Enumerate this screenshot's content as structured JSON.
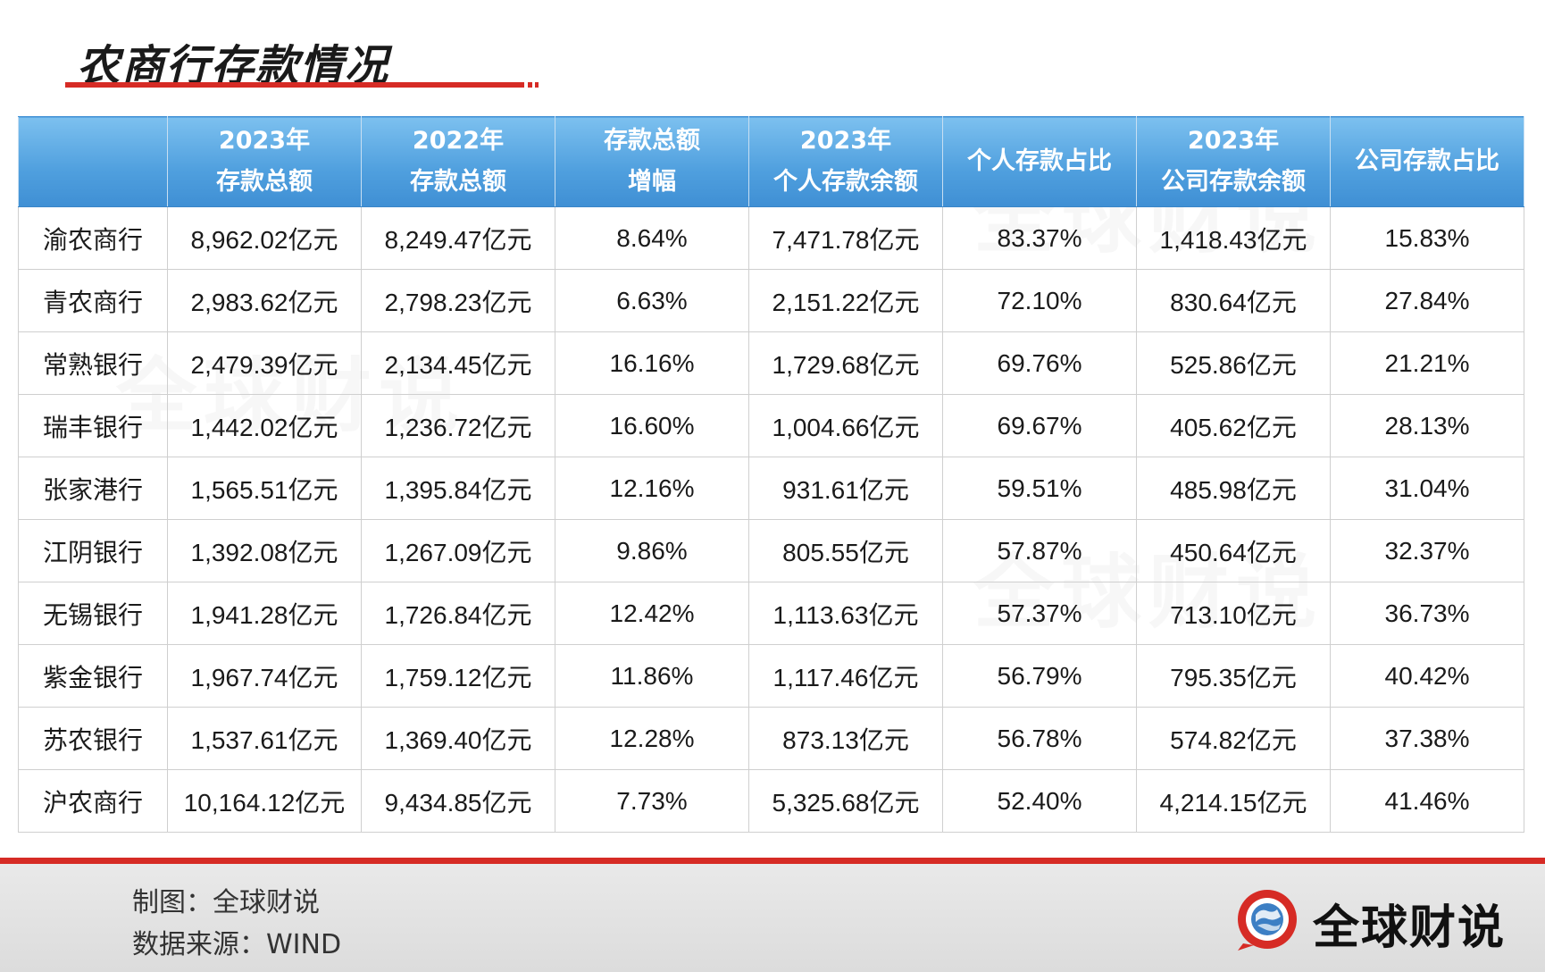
{
  "title": "农商行存款情况",
  "chart_data": {
    "type": "table",
    "columns": [
      {
        "id": "bank",
        "lines": [
          ""
        ]
      },
      {
        "id": "deposit_2023",
        "lines": [
          "2023年",
          "存款总额"
        ]
      },
      {
        "id": "deposit_2022",
        "lines": [
          "2022年",
          "存款总额"
        ]
      },
      {
        "id": "growth",
        "lines": [
          "存款总额",
          "增幅"
        ]
      },
      {
        "id": "personal_2023",
        "lines": [
          "2023年",
          "个人存款余额"
        ]
      },
      {
        "id": "personal_ratio",
        "lines": [
          "个人存款占比"
        ]
      },
      {
        "id": "corporate_2023",
        "lines": [
          "2023年",
          "公司存款余额"
        ]
      },
      {
        "id": "corporate_ratio",
        "lines": [
          "公司存款占比"
        ]
      }
    ],
    "rows": [
      [
        "渝农商行",
        "8,962.02亿元",
        "8,249.47亿元",
        "8.64%",
        "7,471.78亿元",
        "83.37%",
        "1,418.43亿元",
        "15.83%"
      ],
      [
        "青农商行",
        "2,983.62亿元",
        "2,798.23亿元",
        "6.63%",
        "2,151.22亿元",
        "72.10%",
        "830.64亿元",
        "27.84%"
      ],
      [
        "常熟银行",
        "2,479.39亿元",
        "2,134.45亿元",
        "16.16%",
        "1,729.68亿元",
        "69.76%",
        "525.86亿元",
        "21.21%"
      ],
      [
        "瑞丰银行",
        "1,442.02亿元",
        "1,236.72亿元",
        "16.60%",
        "1,004.66亿元",
        "69.67%",
        "405.62亿元",
        "28.13%"
      ],
      [
        "张家港行",
        "1,565.51亿元",
        "1,395.84亿元",
        "12.16%",
        "931.61亿元",
        "59.51%",
        "485.98亿元",
        "31.04%"
      ],
      [
        "江阴银行",
        "1,392.08亿元",
        "1,267.09亿元",
        "9.86%",
        "805.55亿元",
        "57.87%",
        "450.64亿元",
        "32.37%"
      ],
      [
        "无锡银行",
        "1,941.28亿元",
        "1,726.84亿元",
        "12.42%",
        "1,113.63亿元",
        "57.37%",
        "713.10亿元",
        "36.73%"
      ],
      [
        "紫金银行",
        "1,967.74亿元",
        "1,759.12亿元",
        "11.86%",
        "1,117.46亿元",
        "56.79%",
        "795.35亿元",
        "40.42%"
      ],
      [
        "苏农银行",
        "1,537.61亿元",
        "1,369.40亿元",
        "12.28%",
        "873.13亿元",
        "56.78%",
        "574.82亿元",
        "37.38%"
      ],
      [
        "沪农商行",
        "10,164.12亿元",
        "9,434.85亿元",
        "7.73%",
        "5,325.68亿元",
        "52.40%",
        "4,214.15亿元",
        "41.46%"
      ]
    ]
  },
  "footer": {
    "chart_by": "制图：全球财说",
    "source": "数据来源：WIND",
    "brand": "全球财说"
  },
  "watermark_text": "全球财说",
  "colors": {
    "accent_red": "#d62b25",
    "header_blue": "#4f9fde",
    "text": "#1a1a1a"
  }
}
